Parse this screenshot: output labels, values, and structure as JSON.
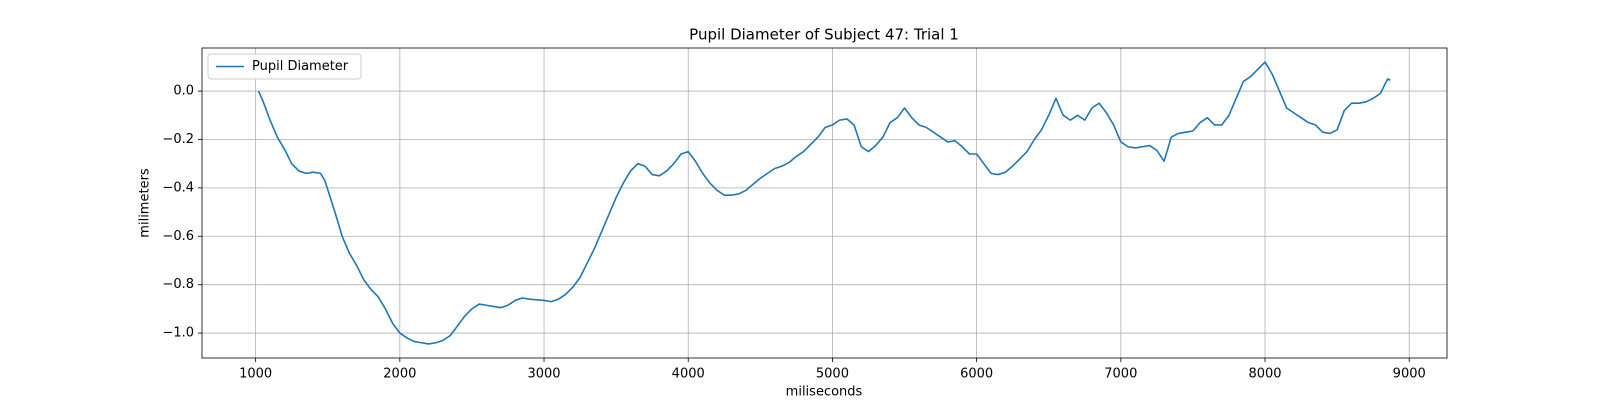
{
  "chart_data": {
    "type": "line",
    "title": "Pupil Diameter of Subject 47: Trial 1",
    "xlabel": "miliseconds",
    "ylabel": "milimeters",
    "x": [
      1020,
      1050,
      1100,
      1150,
      1200,
      1250,
      1300,
      1350,
      1400,
      1450,
      1480,
      1550,
      1600,
      1650,
      1700,
      1750,
      1800,
      1850,
      1900,
      1950,
      2000,
      2050,
      2100,
      2150,
      2200,
      2250,
      2300,
      2350,
      2400,
      2450,
      2500,
      2550,
      2600,
      2650,
      2700,
      2750,
      2800,
      2850,
      2900,
      3000,
      3050,
      3100,
      3150,
      3200,
      3250,
      3300,
      3350,
      3400,
      3450,
      3500,
      3550,
      3600,
      3650,
      3700,
      3750,
      3800,
      3850,
      3900,
      3950,
      4000,
      4050,
      4100,
      4150,
      4200,
      4250,
      4300,
      4350,
      4400,
      4450,
      4500,
      4550,
      4600,
      4650,
      4700,
      4750,
      4800,
      4850,
      4900,
      4950,
      5000,
      5050,
      5100,
      5150,
      5200,
      5250,
      5300,
      5350,
      5400,
      5450,
      5500,
      5550,
      5600,
      5650,
      5700,
      5750,
      5800,
      5850,
      5900,
      5950,
      6000,
      6050,
      6100,
      6150,
      6200,
      6250,
      6300,
      6350,
      6400,
      6450,
      6500,
      6550,
      6600,
      6650,
      6700,
      6750,
      6800,
      6850,
      6900,
      6950,
      7000,
      7050,
      7100,
      7150,
      7200,
      7250,
      7300,
      7350,
      7400,
      7450,
      7500,
      7550,
      7600,
      7650,
      7700,
      7750,
      7800,
      7850,
      7900,
      7950,
      8000,
      8050,
      8100,
      8150,
      8200,
      8250,
      8300,
      8350,
      8400,
      8450,
      8500,
      8550,
      8600,
      8650,
      8700,
      8750,
      8800,
      8850,
      8870
    ],
    "series": [
      {
        "name": "Pupil Diameter",
        "color": "#1f77b4",
        "values": [
          0.0,
          -0.04,
          -0.12,
          -0.19,
          -0.24,
          -0.3,
          -0.33,
          -0.34,
          -0.335,
          -0.34,
          -0.37,
          -0.5,
          -0.6,
          -0.67,
          -0.72,
          -0.78,
          -0.82,
          -0.85,
          -0.9,
          -0.96,
          -1.0,
          -1.02,
          -1.035,
          -1.04,
          -1.045,
          -1.04,
          -1.03,
          -1.01,
          -0.97,
          -0.93,
          -0.9,
          -0.88,
          -0.885,
          -0.89,
          -0.895,
          -0.885,
          -0.865,
          -0.855,
          -0.86,
          -0.865,
          -0.87,
          -0.86,
          -0.84,
          -0.81,
          -0.77,
          -0.71,
          -0.65,
          -0.58,
          -0.51,
          -0.44,
          -0.38,
          -0.33,
          -0.3,
          -0.31,
          -0.345,
          -0.35,
          -0.33,
          -0.3,
          -0.26,
          -0.25,
          -0.29,
          -0.34,
          -0.38,
          -0.41,
          -0.43,
          -0.43,
          -0.425,
          -0.41,
          -0.385,
          -0.36,
          -0.34,
          -0.32,
          -0.31,
          -0.295,
          -0.27,
          -0.25,
          -0.22,
          -0.19,
          -0.15,
          -0.14,
          -0.12,
          -0.115,
          -0.14,
          -0.23,
          -0.25,
          -0.225,
          -0.19,
          -0.13,
          -0.11,
          -0.07,
          -0.11,
          -0.14,
          -0.15,
          -0.17,
          -0.19,
          -0.21,
          -0.205,
          -0.23,
          -0.26,
          -0.26,
          -0.3,
          -0.34,
          -0.345,
          -0.335,
          -0.31,
          -0.28,
          -0.25,
          -0.2,
          -0.16,
          -0.1,
          -0.03,
          -0.1,
          -0.12,
          -0.1,
          -0.12,
          -0.07,
          -0.05,
          -0.09,
          -0.14,
          -0.21,
          -0.23,
          -0.235,
          -0.23,
          -0.225,
          -0.245,
          -0.29,
          -0.19,
          -0.175,
          -0.17,
          -0.165,
          -0.13,
          -0.11,
          -0.14,
          -0.14,
          -0.1,
          -0.03,
          0.04,
          0.06,
          0.09,
          0.12,
          0.07,
          0.0,
          -0.07,
          -0.09,
          -0.11,
          -0.13,
          -0.14,
          -0.17,
          -0.175,
          -0.16,
          -0.08,
          -0.05,
          -0.05,
          -0.045,
          -0.03,
          -0.01,
          0.05,
          0.045
        ]
      }
    ],
    "xlim": [
      628,
      9262
    ],
    "xticks": [
      1000,
      2000,
      3000,
      4000,
      5000,
      6000,
      7000,
      8000,
      9000
    ],
    "ylim": [
      -1.103,
      0.178
    ],
    "yticks": [
      {
        "value": -1.0,
        "label": "−1.0"
      },
      {
        "value": -0.8,
        "label": "−0.8"
      },
      {
        "value": -0.6,
        "label": "−0.6"
      },
      {
        "value": -0.4,
        "label": "−0.4"
      },
      {
        "value": -0.2,
        "label": "−0.2"
      },
      {
        "value": 0.0,
        "label": "0.0"
      }
    ],
    "grid": true,
    "legend": "upper-left"
  }
}
